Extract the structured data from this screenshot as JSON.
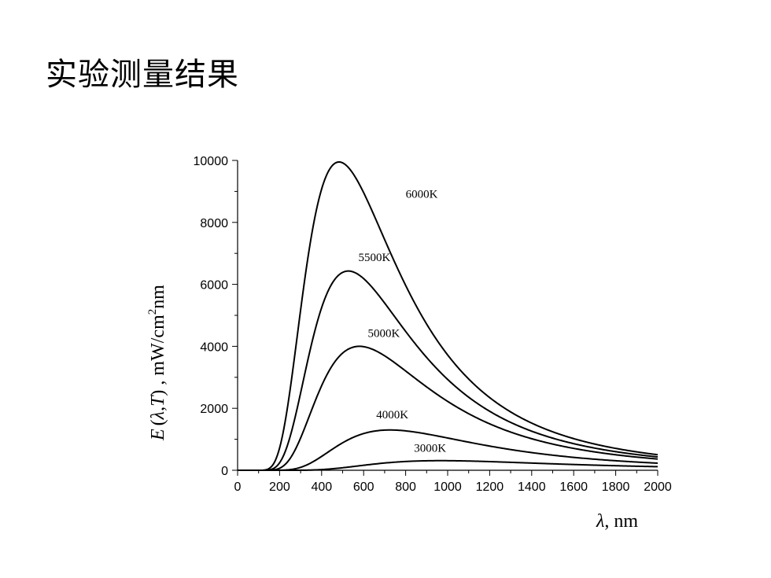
{
  "slide": {
    "title": "实验测量结果"
  },
  "chart_data": {
    "type": "line",
    "title": "",
    "xlabel": {
      "symbol": "λ",
      "rest": ", nm"
    },
    "ylabel": {
      "E": "E",
      "lp": "(",
      "lambda": "λ",
      "comma": ",",
      "T": "T",
      "rp": ")",
      "units": " , mW/cm",
      "sup": "2",
      "tail": "nm"
    },
    "xlim": [
      0,
      2000
    ],
    "ylim": [
      0,
      10000
    ],
    "xticks": [
      0,
      200,
      400,
      600,
      800,
      1000,
      1200,
      1400,
      1600,
      1800,
      2000
    ],
    "xtick_labels": [
      "0",
      "200",
      "400",
      "600",
      "800",
      "1000",
      "1200",
      "1400",
      "1600",
      "1800",
      "2000"
    ],
    "yticks": [
      0,
      2000,
      4000,
      6000,
      8000,
      10000
    ],
    "ytick_labels": [
      "0",
      "2000",
      "4000",
      "6000",
      "8000",
      "10000"
    ],
    "grid": false,
    "legend": "none",
    "series": [
      {
        "name": "6000K",
        "peak_x": 483,
        "peak_y": 9950,
        "label_at": [
          800,
          8800
        ]
      },
      {
        "name": "5500K",
        "peak_x": 527,
        "peak_y": 6430,
        "label_at": [
          575,
          6750
        ]
      },
      {
        "name": "5000K",
        "peak_x": 580,
        "peak_y": 4000,
        "label_at": [
          620,
          4300
        ]
      },
      {
        "name": "4000K",
        "peak_x": 725,
        "peak_y": 1300,
        "label_at": [
          660,
          1680
        ]
      },
      {
        "name": "3000K",
        "peak_x": 966,
        "peak_y": 310,
        "label_at": [
          840,
          600
        ]
      }
    ]
  }
}
